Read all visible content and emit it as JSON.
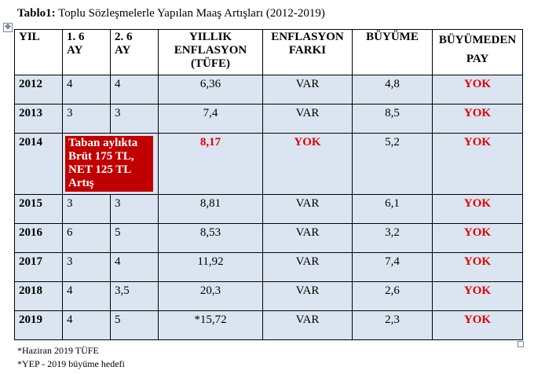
{
  "title": {
    "bold": "Tablo1:",
    "text": " Toplu Sözleşmelerle Yapılan Maaş Artışları (2012-2019)"
  },
  "table": {
    "headers": [
      [
        "YIL"
      ],
      [
        "1. 6",
        "AY"
      ],
      [
        "2. 6",
        "AY"
      ],
      [
        "YILLIK",
        "ENFLASYON",
        "(TÜFE)"
      ],
      [
        "ENFLASYON",
        "FARKI"
      ],
      [
        "BÜYÜME"
      ],
      [
        "BÜYÜMEDEN",
        "PAY"
      ]
    ],
    "rows": [
      {
        "year": "2012",
        "h1": "4",
        "h2": "4",
        "inflation": "6,36",
        "diff": "VAR",
        "growth": "4,8",
        "share": "YOK"
      },
      {
        "year": "2013",
        "h1": "3",
        "h2": "3",
        "inflation": "7,4",
        "diff": "VAR",
        "growth": "8,5",
        "share": "YOK"
      },
      {
        "year": "2014",
        "note_lines": [
          "Taban aylıkta",
          "Brüt 175 TL,",
          "NET 125 TL",
          "Artış"
        ],
        "inflation": "8,17",
        "diff": "YOK",
        "growth": "5,2",
        "share": "YOK"
      },
      {
        "year": "2015",
        "h1": "3",
        "h2": "3",
        "inflation": "8,81",
        "diff": "VAR",
        "growth": "6,1",
        "share": "YOK"
      },
      {
        "year": "2016",
        "h1": "6",
        "h2": "5",
        "inflation": "8,53",
        "diff": "VAR",
        "growth": "3,2",
        "share": "YOK"
      },
      {
        "year": "2017",
        "h1": "3",
        "h2": "4",
        "inflation": "11,92",
        "diff": "VAR",
        "growth": "7,4",
        "share": "YOK"
      },
      {
        "year": "2018",
        "h1": "4",
        "h2": "3,5",
        "inflation": "20,3",
        "diff": "VAR",
        "growth": "2,6",
        "share": "YOK"
      },
      {
        "year": "2019",
        "h1": "4",
        "h2": "5",
        "inflation": "*15,72",
        "diff": "VAR",
        "growth": "2,3",
        "share": "YOK"
      }
    ]
  },
  "notes": [
    "*Haziran 2019 TÜFE",
    "*YEP - 2019 büyüme hedefi"
  ],
  "colors": {
    "red_text": "#e00000",
    "red_box": "#c00000",
    "row_fill": "#dbe5f1"
  },
  "icons": {
    "move_handle": "table-move-handle-icon",
    "resize_handle": "table-resize-handle-icon"
  }
}
